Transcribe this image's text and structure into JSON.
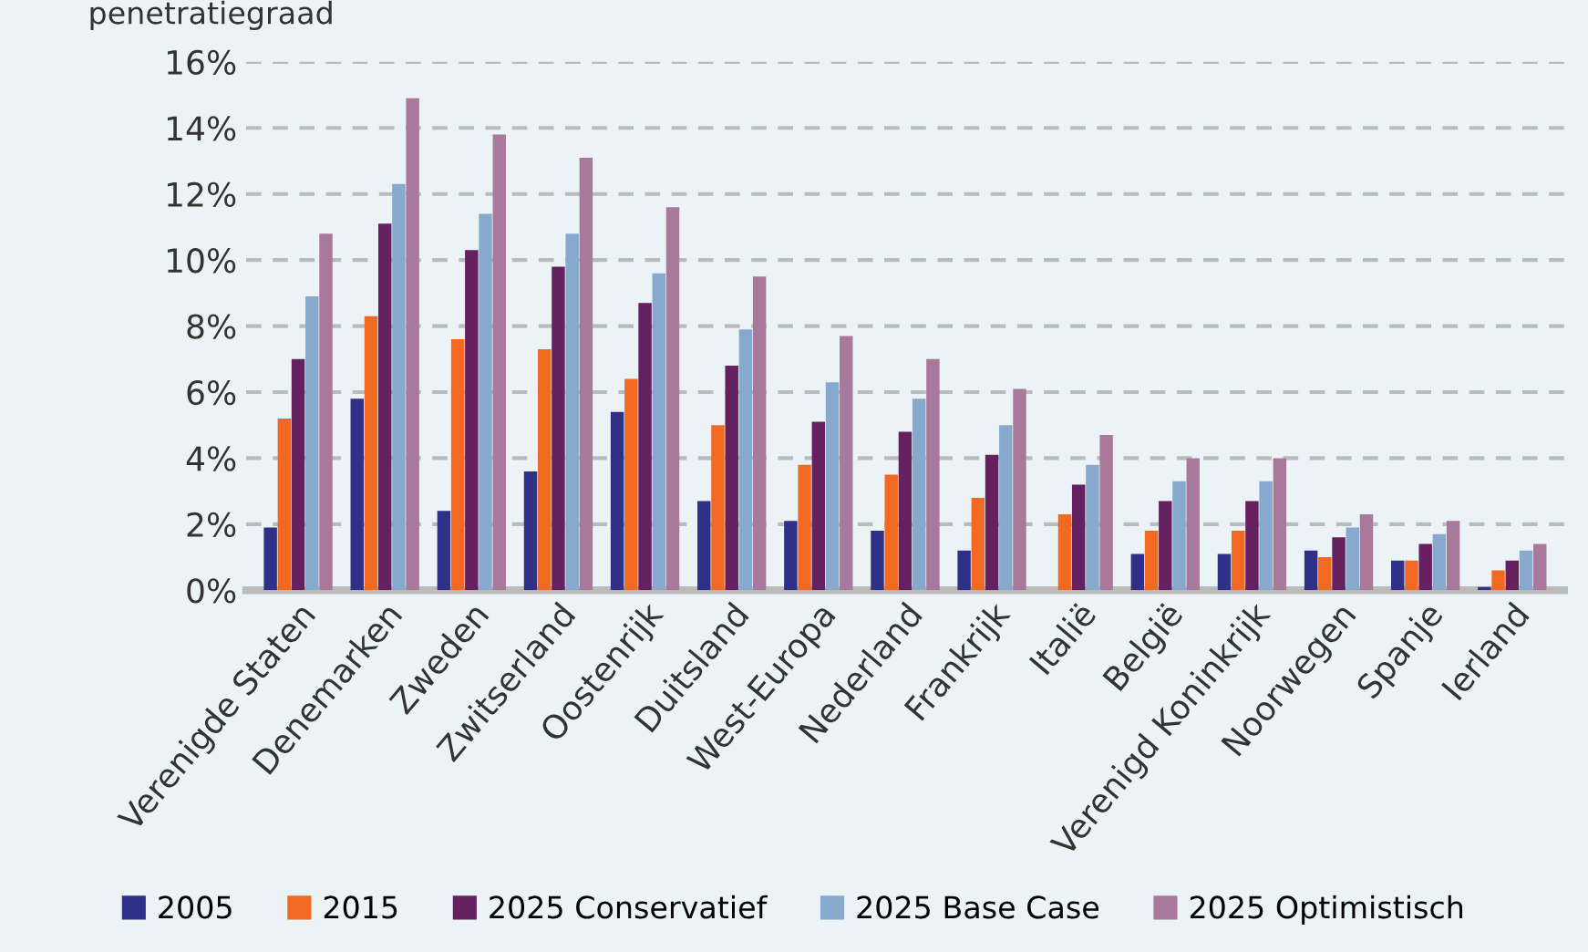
{
  "chart_data": {
    "type": "bar",
    "ylabel": "penetratiegraad",
    "categories": [
      "Verenigde Staten",
      "Denemarken",
      "Zweden",
      "Zwitserland",
      "Oostenrijk",
      "Duitsland",
      "West-Europa",
      "Nederland",
      "Frankrijk",
      "Italië",
      "België",
      "Verenigd Koninkrijk",
      "Noorwegen",
      "Spanje",
      "Ierland"
    ],
    "series": [
      {
        "name": "2005",
        "color": "#2e3187",
        "values": [
          1.9,
          5.8,
          2.4,
          3.6,
          5.4,
          2.7,
          2.1,
          1.8,
          1.2,
          null,
          1.1,
          1.1,
          1.2,
          0.9,
          0.1
        ]
      },
      {
        "name": "2015",
        "color": "#f26a21",
        "values": [
          5.2,
          8.3,
          7.6,
          7.3,
          6.4,
          5.0,
          3.8,
          3.5,
          2.8,
          2.3,
          1.8,
          1.8,
          1.0,
          0.9,
          0.6
        ]
      },
      {
        "name": "2025 Conservatief",
        "color": "#65205f",
        "values": [
          7.0,
          11.1,
          10.3,
          9.8,
          8.7,
          6.8,
          5.1,
          4.8,
          4.1,
          3.2,
          2.7,
          2.7,
          1.6,
          1.4,
          0.9
        ]
      },
      {
        "name": "2025 Base Case",
        "color": "#86a9cd",
        "values": [
          8.9,
          12.3,
          11.4,
          10.8,
          9.6,
          7.9,
          6.3,
          5.8,
          5.0,
          3.8,
          3.3,
          3.3,
          1.9,
          1.7,
          1.2
        ]
      },
      {
        "name": "2025 Optimistisch",
        "color": "#a8799b",
        "values": [
          10.8,
          14.9,
          13.8,
          13.1,
          11.6,
          9.5,
          7.7,
          7.0,
          6.1,
          4.7,
          4.0,
          4.0,
          2.3,
          2.1,
          1.4
        ]
      }
    ],
    "ylim": [
      0,
      16
    ],
    "yticks": [
      {
        "value": 0,
        "label": "0%"
      },
      {
        "value": 2,
        "label": "2%"
      },
      {
        "value": 4,
        "label": "4%"
      },
      {
        "value": 6,
        "label": "6%"
      },
      {
        "value": 8,
        "label": "8%"
      },
      {
        "value": 10,
        "label": "10%"
      },
      {
        "value": 12,
        "label": "12%"
      },
      {
        "value": 14,
        "label": "14%"
      },
      {
        "value": 16,
        "label": "16%"
      }
    ],
    "grid": "y",
    "legend": "bottom"
  }
}
